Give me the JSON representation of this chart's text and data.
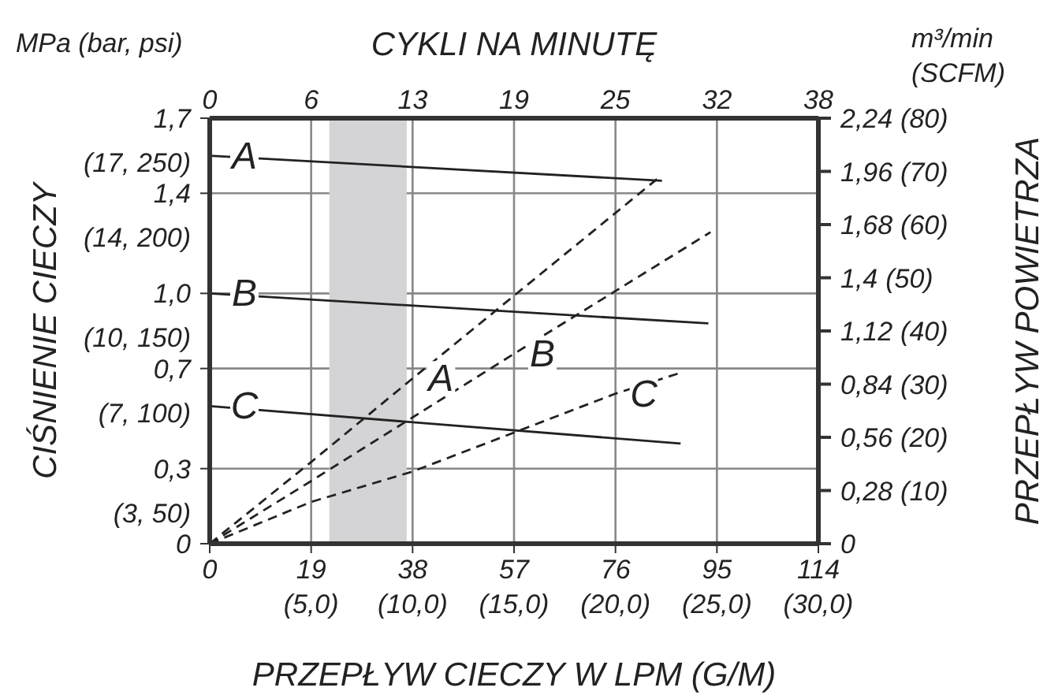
{
  "chart_data": {
    "type": "line",
    "xlabel": "PRZEPŁYW CIECZY W LPM (G/M)",
    "x2label": "CYKLI NA MINUTĘ",
    "ylabel": "CIŚNIENIE CIECZY",
    "y2label": "PRZEPŁYW POWIETRZA",
    "annotations": [
      "MPa (bar, psi)",
      "m³/min (SCFM)",
      "(5,0)",
      "(10,0)",
      "(15,0)",
      "(20,0)",
      "(25,0)",
      "(30,0)",
      "(3, 50)",
      "(7, 100)",
      "(10, 150)",
      "(14, 200)",
      "(17, 250)",
      "(10)",
      "(20)",
      "(30)",
      "(40)",
      "(50)",
      "(60)",
      "(70)",
      "(80)"
    ],
    "xlim": [
      0,
      114
    ],
    "xticks": [
      0,
      19,
      38,
      57,
      76,
      95,
      114
    ],
    "x2lim": [
      0,
      38
    ],
    "x2ticks": [
      0,
      {
        "value": 6.33,
        "label": "6"
      },
      {
        "value": 12.67,
        "label": "13"
      },
      19,
      {
        "value": 25.33,
        "label": "25"
      },
      {
        "value": 31.67,
        "label": "32"
      },
      38
    ],
    "ylim": [
      0,
      1.7
    ],
    "yticks": [
      0,
      {
        "value": 0.3,
        "label": "0,3"
      },
      {
        "value": 0.7,
        "label": "0,7"
      },
      {
        "value": 1.0,
        "label": "1,0"
      },
      {
        "value": 1.4,
        "label": "1,4"
      },
      {
        "value": 1.7,
        "label": "1,7"
      }
    ],
    "y2lim": [
      0,
      2.24
    ],
    "y2ticks": [
      0,
      {
        "value": 0.28,
        "label": "0,28"
      },
      {
        "value": 0.56,
        "label": "0,56"
      },
      {
        "value": 0.84,
        "label": "0,84"
      },
      {
        "value": 1.12,
        "label": "1,12"
      },
      {
        "value": 1.4,
        "label": "1,4"
      },
      {
        "value": 1.68,
        "label": "1,68"
      },
      {
        "value": 1.96,
        "label": "1,96"
      },
      {
        "value": 2.24,
        "label": "2,24"
      }
    ],
    "grid": true,
    "bands": [
      {
        "axis": "x",
        "from": 22.4,
        "to": 36.9,
        "color": "#d4d4d6"
      }
    ],
    "series": [
      {
        "name": "A",
        "color": "#222222",
        "line_style": "solid",
        "x": [
          0,
          84.7
        ],
        "values": [
          1.55,
          1.45
        ]
      },
      {
        "name": "B",
        "color": "#222222",
        "line_style": "solid",
        "x": [
          0,
          93.4
        ],
        "values": [
          1.0,
          0.88
        ]
      },
      {
        "name": "C",
        "color": "#222222",
        "line_style": "solid",
        "x": [
          0,
          88.2
        ],
        "values": [
          0.55,
          0.4
        ]
      },
      {
        "name": "A",
        "color": "#222222",
        "line_style": "dashed",
        "axis": "y2",
        "x": [
          0,
          19,
          38,
          83.8
        ],
        "values": [
          0,
          0.43,
          0.87,
          1.92
        ]
      },
      {
        "name": "B",
        "color": "#222222",
        "line_style": "dashed",
        "axis": "y2",
        "x": [
          0,
          19,
          57,
          93.8
        ],
        "values": [
          0,
          0.33,
          1.0,
          1.64
        ]
      },
      {
        "name": "C",
        "color": "#222222",
        "line_style": "dashed",
        "axis": "y2",
        "x": [
          0,
          19,
          38,
          76,
          88.2
        ],
        "values": [
          0,
          0.22,
          0.38,
          0.79,
          0.9
        ]
      }
    ]
  }
}
